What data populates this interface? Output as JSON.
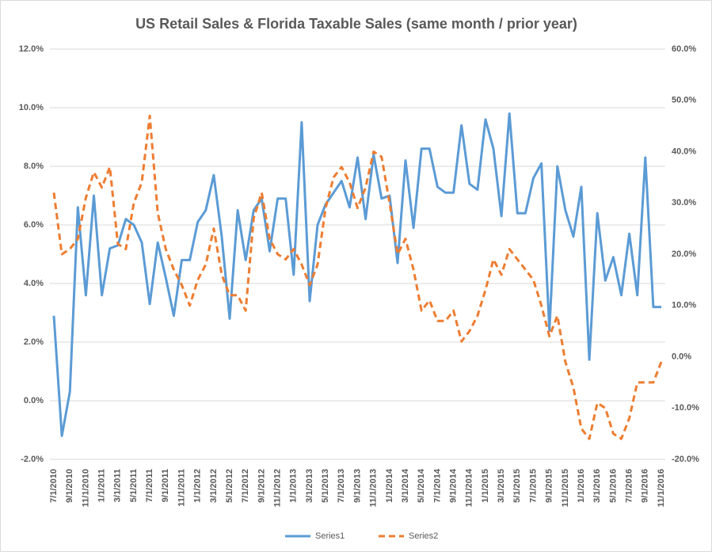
{
  "chart_data": {
    "type": "line",
    "title": "US Retail Sales & Florida Taxable Sales (same month / prior year)",
    "categories": [
      "7/1/2010",
      null,
      "9/1/2010",
      null,
      "11/1/2010",
      null,
      "1/1/2011",
      null,
      "3/1/2011",
      null,
      "5/1/2011",
      null,
      "7/1/2011",
      null,
      "9/1/2011",
      null,
      "11/1/2011",
      null,
      "1/1/2012",
      null,
      "3/1/2012",
      null,
      "5/1/2012",
      null,
      "7/1/2012",
      null,
      "9/1/2012",
      null,
      "11/1/2012",
      null,
      "1/1/2013",
      null,
      "3/1/2013",
      null,
      "5/1/2013",
      null,
      "7/1/2013",
      null,
      "9/1/2013",
      null,
      "11/1/2013",
      null,
      "1/1/2014",
      null,
      "3/1/2014",
      null,
      "5/1/2014",
      null,
      "7/1/2014",
      null,
      "9/1/2014",
      null,
      "11/1/2014",
      null,
      "1/1/2015",
      null,
      "3/1/2015",
      null,
      "5/1/2015",
      null,
      "7/1/2015",
      null,
      "9/1/2015",
      null,
      "11/1/2015",
      null,
      "1/1/2016",
      null,
      "3/1/2016",
      null,
      "5/1/2016",
      null,
      "7/1/2016",
      null,
      "9/1/2016",
      null,
      "11/1/2016"
    ],
    "series": [
      {
        "name": "Series1",
        "color": "#5b9bd5",
        "dashed": false,
        "values": [
          2.9,
          -1.2,
          0.3,
          6.6,
          3.6,
          7.0,
          3.6,
          5.2,
          5.3,
          6.2,
          6.0,
          5.4,
          3.3,
          5.4,
          4.2,
          2.9,
          4.8,
          4.8,
          6.1,
          6.5,
          7.7,
          5.6,
          2.8,
          6.5,
          4.8,
          6.5,
          6.9,
          5.1,
          6.9,
          6.9,
          4.3,
          9.5,
          3.4,
          6.0,
          6.7,
          7.1,
          7.5,
          6.6,
          8.3,
          6.2,
          8.4,
          6.9,
          7.0,
          4.7,
          8.2,
          5.9,
          8.6,
          8.6,
          7.3,
          7.1,
          7.1,
          9.4,
          7.4,
          7.2,
          9.6,
          8.6,
          6.3,
          9.8,
          6.4,
          6.4,
          7.6,
          8.1,
          2.4,
          8.0,
          6.5,
          5.6,
          7.3,
          1.4,
          6.4,
          4.1,
          4.9,
          3.6,
          5.7,
          3.6,
          8.3,
          3.2,
          3.2
        ]
      },
      {
        "name": "Series2",
        "color": "#ed7d31",
        "dashed": true,
        "axis": "y2",
        "values": [
          32,
          20,
          21,
          23,
          31,
          36,
          33,
          37,
          22,
          21,
          30,
          34,
          47,
          28,
          21,
          17,
          14,
          10,
          15,
          18,
          25,
          16,
          12,
          12,
          9,
          27,
          32,
          23,
          20,
          19,
          21,
          18,
          14,
          18,
          29,
          35,
          37,
          34,
          29,
          33,
          40,
          39,
          30,
          20,
          23,
          17,
          9,
          11,
          7,
          7,
          9,
          3,
          5,
          8,
          13,
          19,
          16,
          21,
          19,
          17,
          15,
          10,
          4,
          8,
          -1,
          -6,
          -14,
          -16,
          -9,
          -10,
          -15,
          -16,
          -12,
          -5,
          -5,
          -5,
          -1
        ]
      }
    ],
    "ylim": [
      -2,
      12
    ],
    "yticks": [
      {
        "value": -2,
        "label": "-2.0%"
      },
      {
        "value": 0,
        "label": "0.0%"
      },
      {
        "value": 2,
        "label": "2.0%"
      },
      {
        "value": 4,
        "label": "4.0%"
      },
      {
        "value": 6,
        "label": "6.0%"
      },
      {
        "value": 8,
        "label": "8.0%"
      },
      {
        "value": 10,
        "label": "10.0%"
      },
      {
        "value": 12,
        "label": "12.0%"
      }
    ],
    "y2lim": [
      -20,
      60
    ],
    "y2ticks": [
      {
        "value": -20,
        "label": "-20.0%"
      },
      {
        "value": -10,
        "label": "-10.0%"
      },
      {
        "value": 0,
        "label": "0.0%"
      },
      {
        "value": 10,
        "label": "10.0%"
      },
      {
        "value": 20,
        "label": "20.0%"
      },
      {
        "value": 30,
        "label": "30.0%"
      },
      {
        "value": 40,
        "label": "40.0%"
      },
      {
        "value": 50,
        "label": "50.0%"
      },
      {
        "value": 60,
        "label": "60.0%"
      }
    ],
    "grid": true,
    "legend": "bottom"
  }
}
